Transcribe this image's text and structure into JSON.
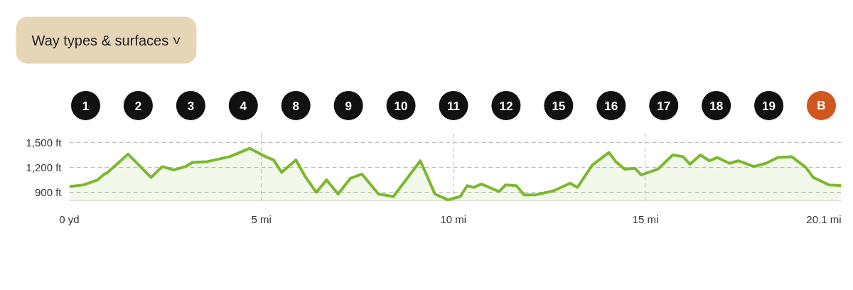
{
  "chart_data": {
    "type": "area",
    "annotations": [
      "Way types & surfaces ˅",
      "1",
      "2",
      "3",
      "4",
      "8",
      "9",
      "10",
      "11",
      "12",
      "15",
      "16",
      "17",
      "18",
      "19",
      "B"
    ],
    "x": [
      0,
      0.37,
      0.74,
      0.91,
      1.0,
      1.53,
      2.13,
      2.42,
      2.72,
      3.02,
      3.21,
      3.59,
      4.18,
      4.7,
      5.11,
      5.32,
      5.53,
      5.9,
      6.13,
      6.43,
      6.7,
      7.0,
      7.32,
      7.62,
      8.05,
      8.44,
      9.14,
      9.52,
      9.86,
      10.18,
      10.36,
      10.53,
      10.73,
      11.19,
      11.36,
      11.64,
      11.84,
      12.14,
      12.62,
      13.04,
      13.23,
      13.62,
      14.05,
      14.23,
      14.46,
      14.73,
      14.89,
      15.33,
      15.71,
      15.98,
      16.16,
      16.43,
      16.67,
      16.87,
      17.19,
      17.42,
      17.83,
      18.14,
      18.45,
      18.81,
      19.18,
      19.37,
      19.78,
      20.1
    ],
    "series": [
      {
        "color": "#7cb82f",
        "values": [
          970,
          990,
          1050,
          1120,
          1140,
          1360,
          1080,
          1210,
          1170,
          1210,
          1260,
          1270,
          1330,
          1430,
          1330,
          1290,
          1140,
          1290,
          1100,
          900,
          1050,
          880,
          1070,
          1120,
          880,
          850,
          1280,
          880,
          810,
          850,
          980,
          960,
          1000,
          910,
          990,
          980,
          870,
          870,
          920,
          1010,
          960,
          1230,
          1380,
          1270,
          1180,
          1190,
          1110,
          1180,
          1350,
          1330,
          1240,
          1350,
          1280,
          1320,
          1250,
          1280,
          1210,
          1250,
          1320,
          1330,
          1200,
          1080,
          990,
          980
        ]
      }
    ],
    "xlim": [
      0,
      20.1
    ],
    "ylim": [
      790,
      1620
    ],
    "xticks": [
      {
        "value": 0,
        "label": "0 yd"
      },
      {
        "value": 5,
        "label": "5 mi"
      },
      {
        "value": 10,
        "label": "10 mi"
      },
      {
        "value": 15,
        "label": "15 mi"
      },
      {
        "value": 20.1,
        "label": "20.1 mi"
      }
    ],
    "yticks": [
      {
        "value": 900,
        "label": "900 ft"
      },
      {
        "value": 1200,
        "label": "1,200 ft"
      },
      {
        "value": 1500,
        "label": "1,500 ft"
      }
    ],
    "grid": true
  }
}
